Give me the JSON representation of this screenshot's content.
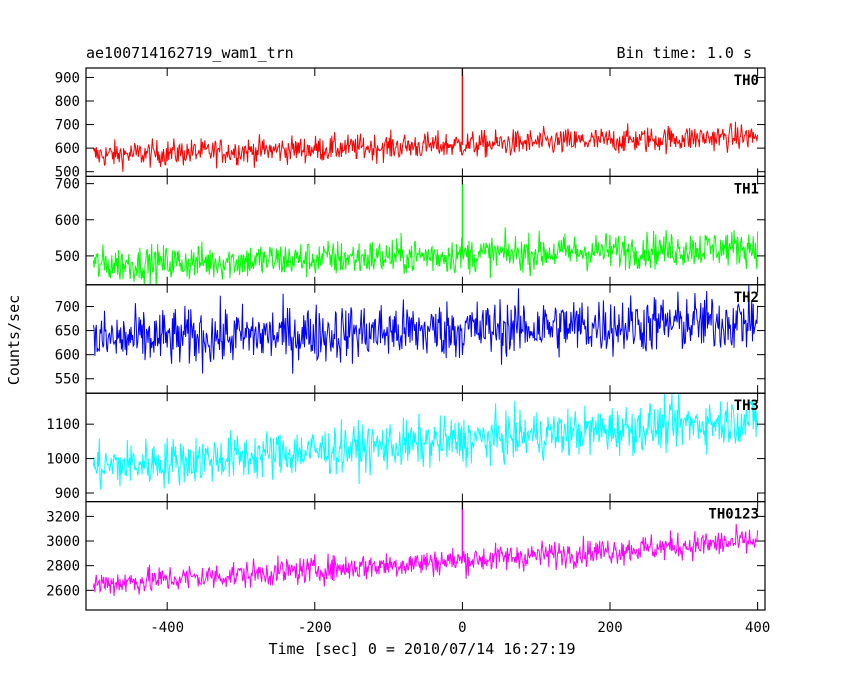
{
  "header": {
    "title": "ae100714162719_wam1_trn",
    "bin_time": "Bin time: 1.0 s"
  },
  "chart_data": {
    "type": "line",
    "xlabel": "Time [sec] 0 = 2010/07/14 16:27:19",
    "ylabel": "Counts/sec",
    "xlim": [
      -510,
      410
    ],
    "x_ticks": [
      -400,
      -200,
      0,
      200,
      400
    ],
    "x_range": [
      -500,
      400
    ],
    "panels": [
      {
        "name": "TH0",
        "color": "#ff0000",
        "ylim": [
          480,
          940
        ],
        "y_ticks": [
          500,
          600,
          700,
          800,
          900
        ],
        "start_mean": 570,
        "end_mean": 650,
        "noise_sd": 28,
        "spike": {
          "x": 0,
          "y": 940
        }
      },
      {
        "name": "TH1",
        "color": "#00ff00",
        "ylim": [
          420,
          720
        ],
        "y_ticks": [
          500,
          600,
          700
        ],
        "start_mean": 475,
        "end_mean": 525,
        "noise_sd": 25,
        "spike": {
          "x": 0,
          "y": 720
        }
      },
      {
        "name": "TH2",
        "color": "#0000ff",
        "ylim": [
          520,
          745
        ],
        "y_ticks": [
          550,
          600,
          650,
          700
        ],
        "start_mean": 630,
        "end_mean": 670,
        "noise_sd": 30,
        "spike": null
      },
      {
        "name": "TH3",
        "color": "#00ffff",
        "ylim": [
          875,
          1190
        ],
        "y_ticks": [
          900,
          1000,
          1100
        ],
        "start_mean": 975,
        "end_mean": 1115,
        "noise_sd": 35,
        "spike": null
      },
      {
        "name": "TH0123",
        "color": "#ff00ff",
        "ylim": [
          2440,
          3320
        ],
        "y_ticks": [
          2600,
          2800,
          3000,
          3200
        ],
        "start_mean": 2650,
        "end_mean": 3000,
        "noise_sd": 55,
        "spike": {
          "x": 0,
          "y": 3320
        }
      }
    ]
  }
}
